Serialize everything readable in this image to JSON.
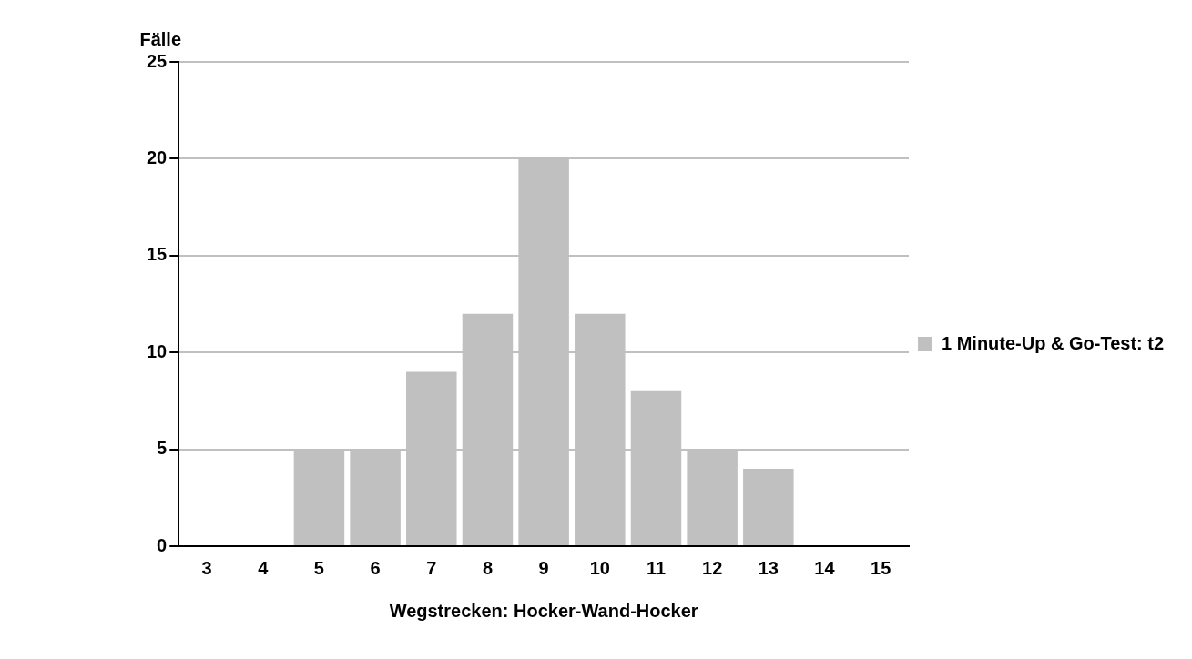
{
  "chart_data": {
    "type": "bar",
    "ylabel": "Fälle",
    "xlabel": "Wegstrecken: Hocker-Wand-Hocker",
    "categories": [
      "3",
      "4",
      "5",
      "6",
      "7",
      "8",
      "9",
      "10",
      "11",
      "12",
      "13",
      "14",
      "15"
    ],
    "series": [
      {
        "name": "1 Minute-Up & Go-Test: t2",
        "color": "#c0c0c0",
        "values": [
          0,
          0,
          5,
          5,
          9,
          12,
          20,
          12,
          8,
          5,
          4,
          0,
          0
        ]
      }
    ],
    "ylim": [
      0,
      25
    ],
    "yticks": [
      0,
      5,
      10,
      15,
      20,
      25
    ],
    "grid": "y",
    "legend": "right"
  }
}
